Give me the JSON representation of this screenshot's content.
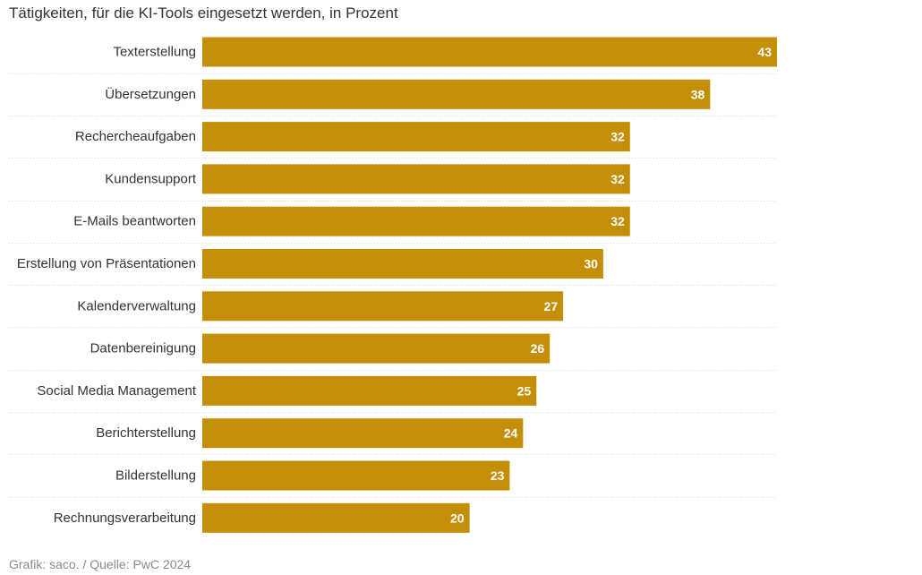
{
  "colors": {
    "bar": "#C48E07",
    "separator": "#d6d6d6",
    "value_text": "#ffffff"
  },
  "footer": {
    "credit": "Grafik: saco. / Quelle: PwC 2024"
  },
  "chart_data": {
    "type": "bar",
    "orientation": "horizontal",
    "title": "Tätigkeiten, für die KI-Tools eingesetzt werden, in Prozent",
    "xlabel": "",
    "ylabel": "",
    "xlim": [
      0,
      43
    ],
    "grid": false,
    "legend": "none",
    "categories": [
      "Texterstellung",
      "Übersetzungen",
      "Rechercheaufgaben",
      "Kundensupport",
      "E-Mails beantworten",
      "Erstellung von Präsentationen",
      "Kalenderverwaltung",
      "Datenbereinigung",
      "Social Media Management",
      "Berichterstellung",
      "Bilderstellung",
      "Rechnungsverarbeitung"
    ],
    "values": [
      43,
      38,
      32,
      32,
      32,
      30,
      27,
      26,
      25,
      24,
      23,
      20
    ]
  }
}
